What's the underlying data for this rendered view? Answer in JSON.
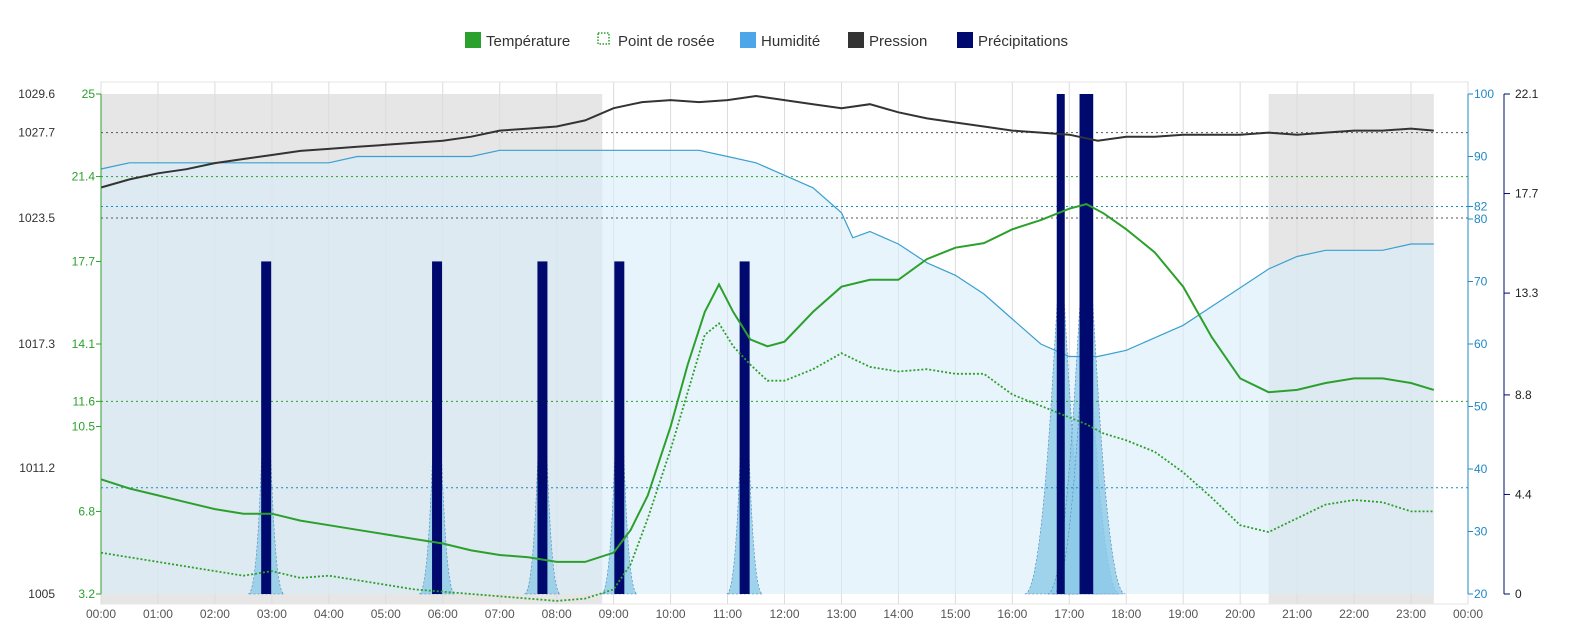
{
  "chart_data": {
    "type": "line",
    "legend": {
      "placement": "top-center",
      "items": [
        {
          "label": "Température",
          "color": "#2ca02c",
          "style": "solid"
        },
        {
          "label": "Point de rosée",
          "color": "#2ca02c",
          "style": "dotted"
        },
        {
          "label": "Humidité",
          "color": "#4da6e8",
          "style": "solid"
        },
        {
          "label": "Pression",
          "color": "#333333",
          "style": "solid"
        },
        {
          "label": "Précipitations",
          "color": "#000a6e",
          "style": "solid"
        }
      ]
    },
    "colors": {
      "temperature": "#2ca02c",
      "dewpoint": "#2ca02c",
      "humidity_line": "#3aa0d0",
      "humidity_fill": "#d8edf8",
      "pressure": "#333333",
      "precip_bar": "#000a6e",
      "precip_fill": "#8ccbe8",
      "night_shade": "#e6e6e6",
      "axis_green": "#2ca02c",
      "axis_blue": "#1f88c6",
      "axis_dark": "#000a6e"
    },
    "x_ticks": [
      "00:00",
      "01:00",
      "02:00",
      "03:00",
      "04:00",
      "05:00",
      "06:00",
      "07:00",
      "08:00",
      "09:00",
      "10:00",
      "11:00",
      "12:00",
      "13:00",
      "14:00",
      "15:00",
      "16:00",
      "17:00",
      "18:00",
      "19:00",
      "20:00",
      "21:00",
      "22:00",
      "23:00",
      "00:00"
    ],
    "x_range_hours": [
      0,
      24
    ],
    "night_periods_hours": [
      [
        0,
        8.8
      ],
      [
        20.5,
        23.4
      ]
    ],
    "axes": {
      "pressure": {
        "ticks": [
          "1005",
          "1011.2",
          "1017.3",
          "1023.5",
          "1027.7",
          "1029.6"
        ],
        "range": [
          1005,
          1029.6
        ]
      },
      "temperature": {
        "ticks": [
          "3.2",
          "6.8",
          "10.5",
          "11.6",
          "14.1",
          "17.7",
          "21.4",
          "25"
        ],
        "range": [
          3.2,
          25
        ]
      },
      "humidity": {
        "ticks": [
          "20",
          "30",
          "40",
          "50",
          "60",
          "70",
          "80",
          "82",
          "90",
          "100"
        ],
        "range": [
          20,
          100
        ]
      },
      "precipitation": {
        "ticks": [
          "0",
          "4.4",
          "8.8",
          "13.3",
          "17.7",
          "22.1"
        ],
        "range": [
          0,
          22.1
        ]
      }
    },
    "reference_lines": {
      "pressure": [
        1027.7,
        1023.5
      ],
      "temperature": [
        11.6,
        21.4
      ],
      "humidity": [
        82,
        37
      ]
    },
    "series": [
      {
        "name": "Température",
        "unit": "°C",
        "x": [
          0,
          0.5,
          1,
          1.5,
          2,
          2.5,
          3,
          3.5,
          4,
          4.5,
          5,
          5.5,
          6,
          6.5,
          7,
          7.5,
          8,
          8.5,
          9,
          9.3,
          9.6,
          10,
          10.3,
          10.6,
          10.85,
          11.1,
          11.4,
          11.7,
          12,
          12.5,
          13,
          13.5,
          14,
          14.5,
          15,
          15.5,
          16,
          16.5,
          17,
          17.3,
          17.6,
          18,
          18.5,
          19,
          19.5,
          20,
          20.5,
          21,
          21.5,
          22,
          22.5,
          23,
          23.4
        ],
        "values": [
          8.2,
          7.8,
          7.5,
          7.2,
          6.9,
          6.7,
          6.7,
          6.4,
          6.2,
          6.0,
          5.8,
          5.6,
          5.4,
          5.1,
          4.9,
          4.8,
          4.6,
          4.6,
          5.0,
          6.0,
          7.5,
          10.5,
          13.2,
          15.5,
          16.7,
          15.5,
          14.3,
          14.0,
          14.2,
          15.5,
          16.6,
          16.9,
          16.9,
          17.8,
          18.3,
          18.5,
          19.1,
          19.5,
          20.0,
          20.2,
          19.8,
          19.1,
          18.1,
          16.6,
          14.4,
          12.6,
          12.0,
          12.1,
          12.4,
          12.6,
          12.6,
          12.4,
          12.1
        ]
      },
      {
        "name": "Point de rosée",
        "unit": "°C",
        "x": [
          0,
          0.5,
          1,
          1.5,
          2,
          2.5,
          3,
          3.5,
          4,
          4.5,
          5,
          5.5,
          6,
          6.5,
          7,
          7.5,
          8,
          8.5,
          9,
          9.3,
          9.6,
          10,
          10.3,
          10.6,
          10.85,
          11.1,
          11.4,
          11.7,
          12,
          12.5,
          13,
          13.5,
          14,
          14.5,
          15,
          15.5,
          16,
          16.5,
          17,
          17.3,
          17.6,
          18,
          18.5,
          19,
          19.5,
          20,
          20.5,
          21,
          21.5,
          22,
          22.5,
          23,
          23.4
        ],
        "values": [
          5.0,
          4.8,
          4.6,
          4.4,
          4.2,
          4.0,
          4.2,
          3.9,
          4.0,
          3.8,
          3.6,
          3.4,
          3.3,
          3.2,
          3.1,
          3.0,
          2.9,
          3.0,
          3.4,
          4.5,
          6.5,
          9.5,
          12.0,
          14.5,
          15.0,
          14.0,
          13.2,
          12.5,
          12.5,
          13.0,
          13.7,
          13.1,
          12.9,
          13.0,
          12.8,
          12.8,
          11.9,
          11.4,
          10.9,
          10.6,
          10.2,
          9.9,
          9.4,
          8.5,
          7.4,
          6.2,
          5.9,
          6.5,
          7.1,
          7.3,
          7.2,
          6.8,
          6.8
        ]
      },
      {
        "name": "Humidité",
        "unit": "%",
        "x": [
          0,
          0.5,
          1,
          1.5,
          2,
          2.5,
          3,
          3.5,
          4,
          4.5,
          5,
          5.5,
          6,
          6.5,
          7,
          7.5,
          8,
          8.5,
          9,
          9.5,
          10,
          10.5,
          11,
          11.5,
          12,
          12.5,
          13,
          13.2,
          13.5,
          14,
          14.5,
          15,
          15.5,
          16,
          16.5,
          17,
          17.5,
          18,
          18.5,
          19,
          19.5,
          20,
          20.5,
          21,
          21.5,
          22,
          22.5,
          23,
          23.4
        ],
        "values": [
          88,
          89,
          89,
          89,
          89,
          89,
          89,
          89,
          89,
          90,
          90,
          90,
          90,
          90,
          91,
          91,
          91,
          91,
          91,
          91,
          91,
          91,
          90,
          89,
          87,
          85,
          81,
          77,
          78,
          76,
          73,
          71,
          68,
          64,
          60,
          58,
          58,
          59,
          61,
          63,
          66,
          69,
          72,
          74,
          75,
          75,
          75,
          76,
          76
        ]
      },
      {
        "name": "Pression",
        "unit": "hPa",
        "x": [
          0,
          0.5,
          1,
          1.5,
          2,
          2.5,
          3,
          3.5,
          4,
          4.5,
          5,
          5.5,
          6,
          6.5,
          7,
          7.5,
          8,
          8.5,
          9,
          9.5,
          10,
          10.5,
          11,
          11.5,
          12,
          12.5,
          13,
          13.5,
          14,
          14.5,
          15,
          15.5,
          16,
          16.5,
          17,
          17.5,
          18,
          18.5,
          19,
          19.5,
          20,
          20.5,
          21,
          21.5,
          22,
          22.5,
          23,
          23.4
        ],
        "values": [
          1025.0,
          1025.4,
          1025.7,
          1025.9,
          1026.2,
          1026.4,
          1026.6,
          1026.8,
          1026.9,
          1027.0,
          1027.1,
          1027.2,
          1027.3,
          1027.5,
          1027.8,
          1027.9,
          1028.0,
          1028.3,
          1028.9,
          1029.2,
          1029.3,
          1029.2,
          1029.3,
          1029.5,
          1029.3,
          1029.1,
          1028.9,
          1029.1,
          1028.7,
          1028.4,
          1028.2,
          1028.0,
          1027.8,
          1027.7,
          1027.6,
          1027.3,
          1027.5,
          1027.5,
          1027.6,
          1027.6,
          1027.6,
          1027.7,
          1027.6,
          1027.7,
          1027.8,
          1027.8,
          1027.9,
          1027.8
        ]
      },
      {
        "name": "Précipitations",
        "unit": "mm",
        "style": "bars",
        "bars": [
          {
            "x": 2.9,
            "value": 14.7
          },
          {
            "x": 5.9,
            "value": 14.7
          },
          {
            "x": 7.75,
            "value": 14.7
          },
          {
            "x": 9.1,
            "value": 14.7
          },
          {
            "x": 11.3,
            "value": 14.7
          },
          {
            "x": 16.85,
            "value": 22.1
          },
          {
            "x": 17.25,
            "value": 22.1
          },
          {
            "x": 17.35,
            "value": 22.1
          }
        ]
      }
    ]
  }
}
